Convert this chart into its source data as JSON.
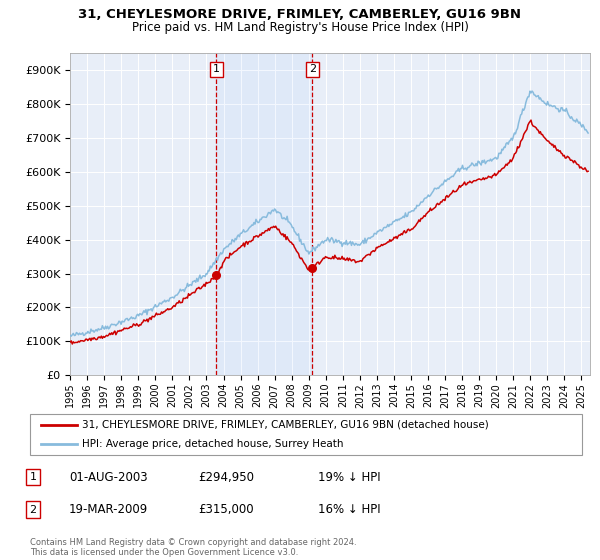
{
  "title": "31, CHEYLESMORE DRIVE, FRIMLEY, CAMBERLEY, GU16 9BN",
  "subtitle": "Price paid vs. HM Land Registry's House Price Index (HPI)",
  "background_color": "#ffffff",
  "plot_bg_color": "#e8eef8",
  "grid_color": "#ffffff",
  "hpi_color": "#88bbdd",
  "price_color": "#cc0000",
  "vline_color": "#cc0000",
  "sale1_date_x": 2003.58,
  "sale2_date_x": 2009.21,
  "sale1_price": 294950,
  "sale2_price": 315000,
  "xmin": 1995,
  "xmax": 2025.5,
  "ymin": 0,
  "ymax": 950000,
  "yticks": [
    0,
    100000,
    200000,
    300000,
    400000,
    500000,
    600000,
    700000,
    800000,
    900000
  ],
  "ytick_labels": [
    "£0",
    "£100K",
    "£200K",
    "£300K",
    "£400K",
    "£500K",
    "£600K",
    "£700K",
    "£800K",
    "£900K"
  ],
  "xticks": [
    1995,
    1996,
    1997,
    1998,
    1999,
    2000,
    2001,
    2002,
    2003,
    2004,
    2005,
    2006,
    2007,
    2008,
    2009,
    2010,
    2011,
    2012,
    2013,
    2014,
    2015,
    2016,
    2017,
    2018,
    2019,
    2020,
    2021,
    2022,
    2023,
    2024,
    2025
  ],
  "legend_line1": "31, CHEYLESMORE DRIVE, FRIMLEY, CAMBERLEY, GU16 9BN (detached house)",
  "legend_line2": "HPI: Average price, detached house, Surrey Heath",
  "footnote": "Contains HM Land Registry data © Crown copyright and database right 2024.\nThis data is licensed under the Open Government Licence v3.0."
}
